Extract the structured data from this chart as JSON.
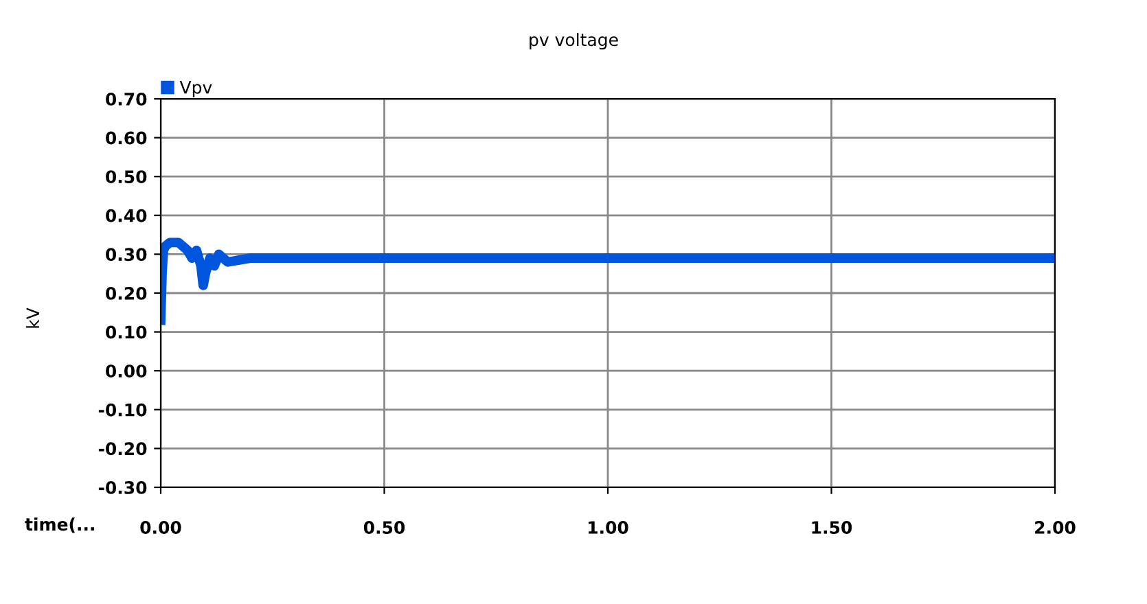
{
  "chart_data": {
    "type": "line",
    "title": "pv voltage",
    "xlabel": "time(...",
    "ylabel": "kV",
    "series": [
      {
        "name": "Vpv",
        "color": "#0055dd",
        "x": [
          0,
          0.003,
          0.006,
          0.01,
          0.02,
          0.04,
          0.05,
          0.06,
          0.07,
          0.08,
          0.09,
          0.095,
          0.1,
          0.11,
          0.12,
          0.13,
          0.15,
          0.2,
          0.5,
          1.0,
          1.5,
          2.0
        ],
        "values": [
          0.13,
          0.25,
          0.31,
          0.32,
          0.33,
          0.33,
          0.32,
          0.31,
          0.29,
          0.31,
          0.27,
          0.22,
          0.25,
          0.29,
          0.27,
          0.3,
          0.28,
          0.29,
          0.29,
          0.29,
          0.29,
          0.29
        ]
      }
    ],
    "xlim": [
      0,
      2
    ],
    "xticks": [
      {
        "value": 0,
        "label": "0.00"
      },
      {
        "value": 0.5,
        "label": "0.50"
      },
      {
        "value": 1,
        "label": "1.00"
      },
      {
        "value": 1.5,
        "label": "1.50"
      },
      {
        "value": 2,
        "label": "2.00"
      }
    ],
    "ylim": [
      -0.3,
      0.7
    ],
    "yticks": [
      {
        "value": -0.3,
        "label": "-0.30"
      },
      {
        "value": -0.2,
        "label": "-0.20"
      },
      {
        "value": -0.1,
        "label": "-0.10"
      },
      {
        "value": 0,
        "label": "0.00"
      },
      {
        "value": 0.1,
        "label": "0.10"
      },
      {
        "value": 0.2,
        "label": "0.20"
      },
      {
        "value": 0.3,
        "label": "0.30"
      },
      {
        "value": 0.4,
        "label": "0.40"
      },
      {
        "value": 0.5,
        "label": "0.50"
      },
      {
        "value": 0.6,
        "label": "0.60"
      },
      {
        "value": 0.7,
        "label": "0.70"
      }
    ],
    "grid": true,
    "legend": "top left",
    "marker": "none",
    "line_style": "solid"
  }
}
